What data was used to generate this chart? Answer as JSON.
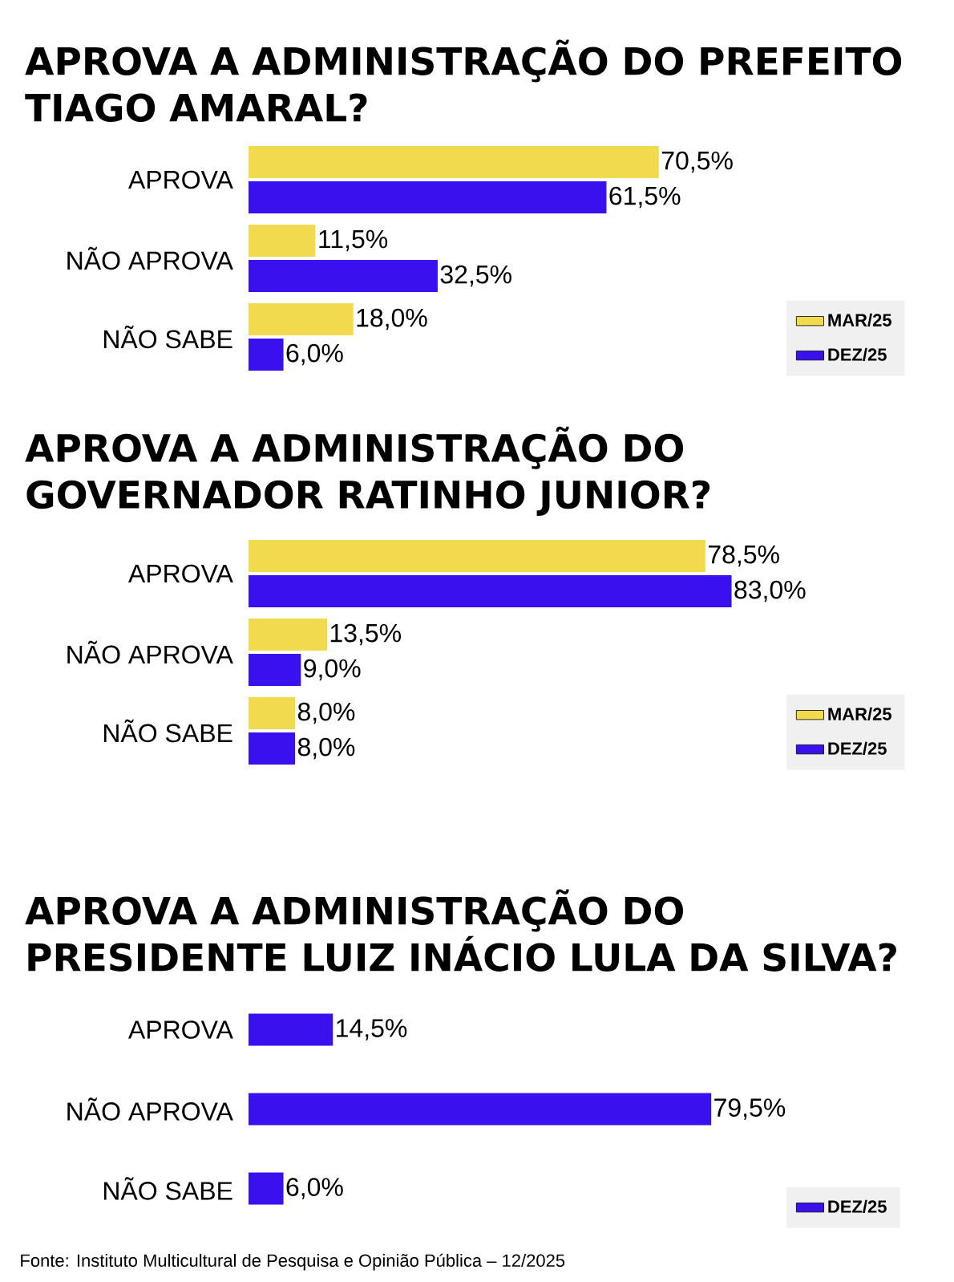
{
  "chart_data": [
    {
      "type": "bar",
      "orientation": "horizontal",
      "title": "APROVA A ADMINISTRAÇÃO DO PREFEITO TIAGO AMARAL?",
      "categories": [
        "APROVA",
        "NÃO APROVA",
        "NÃO SABE"
      ],
      "legend": "bottom right",
      "series": [
        {
          "name": "MAR/25",
          "color": "#f2da4f",
          "values": [
            70.5,
            11.5,
            18.0
          ],
          "value_labels": [
            "70,5%",
            "11,5%",
            "18,0%"
          ]
        },
        {
          "name": "DEZ/25",
          "color": "#3b10ef",
          "values": [
            61.5,
            32.5,
            6.0
          ],
          "value_labels": [
            "61,5%",
            "32,5%",
            "6,0%"
          ]
        }
      ]
    },
    {
      "type": "bar",
      "orientation": "horizontal",
      "title": "APROVA A ADMINISTRAÇÃO DO GOVERNADOR RATINHO JUNIOR?",
      "categories": [
        "APROVA",
        "NÃO APROVA",
        "NÃO SABE"
      ],
      "legend": "bottom right",
      "series": [
        {
          "name": "MAR/25",
          "color": "#f2da4f",
          "values": [
            78.5,
            13.5,
            8.0
          ],
          "value_labels": [
            "78,5%",
            "13,5%",
            "8,0%"
          ]
        },
        {
          "name": "DEZ/25",
          "color": "#3b10ef",
          "values": [
            83.0,
            9.0,
            8.0
          ],
          "value_labels": [
            "83,0%",
            "9,0%",
            "8,0%"
          ]
        }
      ]
    },
    {
      "type": "bar",
      "orientation": "horizontal",
      "title": "APROVA A ADMINISTRAÇÃO DO PRESIDENTE LUIZ INÁCIO LULA DA SILVA?",
      "categories": [
        "APROVA",
        "NÃO APROVA",
        "NÃO SABE"
      ],
      "legend": "bottom right",
      "annotations": [
        "Fonte: Instituto Multicultural de Pesquisa e Opinião Pública – 12/2025"
      ],
      "series": [
        {
          "name": "DEZ/25",
          "color": "#3b10ef",
          "values": [
            14.5,
            79.5,
            6.0
          ],
          "value_labels": [
            "14,5%",
            "79,5%",
            "6,0%"
          ]
        }
      ]
    }
  ]
}
